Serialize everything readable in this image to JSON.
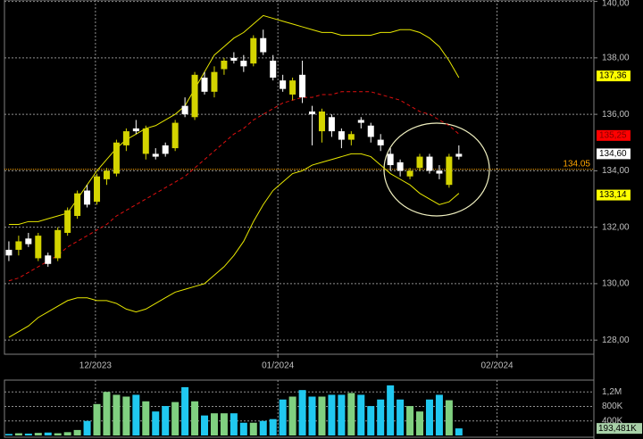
{
  "chart_data": {
    "type": "candlestick",
    "candles": [
      [
        131.2,
        131.5,
        130.8,
        131.0
      ],
      [
        131.2,
        131.7,
        131.0,
        131.5
      ],
      [
        131.6,
        131.8,
        131.3,
        131.4
      ],
      [
        130.9,
        131.8,
        130.8,
        131.7
      ],
      [
        131.0,
        131.1,
        130.6,
        130.7
      ],
      [
        130.9,
        132.0,
        130.8,
        131.9
      ],
      [
        131.8,
        132.7,
        131.7,
        132.6
      ],
      [
        132.4,
        133.3,
        132.3,
        133.2
      ],
      [
        133.3,
        133.5,
        132.7,
        132.8
      ],
      [
        132.9,
        133.9,
        132.8,
        133.8
      ],
      [
        133.7,
        134.1,
        133.5,
        134.0
      ],
      [
        133.9,
        135.1,
        133.8,
        135.0
      ],
      [
        134.9,
        135.5,
        134.7,
        135.4
      ],
      [
        135.5,
        135.8,
        135.3,
        135.4
      ],
      [
        134.6,
        135.6,
        134.4,
        135.5
      ],
      [
        134.6,
        134.8,
        134.4,
        134.5
      ],
      [
        134.9,
        135.0,
        134.5,
        134.6
      ],
      [
        134.8,
        135.8,
        134.7,
        135.7
      ],
      [
        136.3,
        136.6,
        135.9,
        136.0
      ],
      [
        135.9,
        137.5,
        135.8,
        137.4
      ],
      [
        137.3,
        137.5,
        136.7,
        136.8
      ],
      [
        136.8,
        137.7,
        136.6,
        137.5
      ],
      [
        137.6,
        138.0,
        137.4,
        137.9
      ],
      [
        138.0,
        138.2,
        137.8,
        137.9
      ],
      [
        137.9,
        138.1,
        137.5,
        137.7
      ],
      [
        137.8,
        138.8,
        137.7,
        138.7
      ],
      [
        138.7,
        139.0,
        138.1,
        138.2
      ],
      [
        137.9,
        138.1,
        137.2,
        137.3
      ],
      [
        137.2,
        137.4,
        136.8,
        136.9
      ],
      [
        136.7,
        137.3,
        136.5,
        137.2
      ],
      [
        137.4,
        137.9,
        136.4,
        136.6
      ],
      [
        136.1,
        136.3,
        134.9,
        136.0
      ],
      [
        135.4,
        136.2,
        135.0,
        136.1
      ],
      [
        135.9,
        136.0,
        135.2,
        135.4
      ],
      [
        135.4,
        135.5,
        134.8,
        135.1
      ],
      [
        135.1,
        135.4,
        134.9,
        135.3
      ],
      [
        135.8,
        135.9,
        135.5,
        135.7
      ],
      [
        135.6,
        135.7,
        135.0,
        135.2
      ],
      [
        135.1,
        135.3,
        134.7,
        134.9
      ],
      [
        134.6,
        134.8,
        134.0,
        134.2
      ],
      [
        134.3,
        134.4,
        133.8,
        134.0
      ],
      [
        133.8,
        134.1,
        133.7,
        134.0
      ],
      [
        134.1,
        134.6,
        134.0,
        134.5
      ],
      [
        134.5,
        134.6,
        133.9,
        134.0
      ],
      [
        134.0,
        134.2,
        133.7,
        133.9
      ],
      [
        133.5,
        134.6,
        133.4,
        134.5
      ],
      [
        134.6,
        134.9,
        134.4,
        134.5
      ]
    ],
    "up_color": "#d4d400",
    "down_color": "#ffffff",
    "bands": [
      {
        "color": "#e8e800",
        "dash": false,
        "values": [
          132.1,
          132.1,
          132.2,
          132.2,
          132.3,
          132.4,
          132.5,
          133.0,
          133.5,
          134.0,
          134.4,
          134.8,
          135.1,
          135.3,
          135.5,
          135.6,
          135.8,
          136.0,
          136.3,
          136.9,
          137.5,
          138.1,
          138.4,
          138.7,
          138.9,
          139.2,
          139.5,
          139.4,
          139.3,
          139.2,
          139.1,
          139.0,
          138.9,
          138.9,
          138.8,
          138.8,
          138.8,
          138.8,
          138.9,
          138.9,
          139.0,
          139.0,
          138.9,
          138.7,
          138.4,
          137.9,
          137.3
        ]
      },
      {
        "color": "#e01010",
        "dash": true,
        "values": [
          130.1,
          130.2,
          130.4,
          130.6,
          130.8,
          131.0,
          131.3,
          131.5,
          131.7,
          131.9,
          132.1,
          132.4,
          132.6,
          132.8,
          133.0,
          133.2,
          133.4,
          133.6,
          133.8,
          134.1,
          134.4,
          134.7,
          135.0,
          135.3,
          135.5,
          135.8,
          136.0,
          136.2,
          136.4,
          136.5,
          136.6,
          136.6,
          136.7,
          136.7,
          136.8,
          136.8,
          136.8,
          136.8,
          136.7,
          136.6,
          136.5,
          136.3,
          136.1,
          136.0,
          135.8,
          135.6,
          135.3
        ]
      },
      {
        "color": "#e8e800",
        "dash": false,
        "values": [
          128.1,
          128.3,
          128.5,
          128.8,
          129.0,
          129.2,
          129.4,
          129.5,
          129.5,
          129.4,
          129.4,
          129.3,
          129.1,
          129.0,
          129.1,
          129.3,
          129.5,
          129.7,
          129.8,
          129.9,
          130.0,
          130.3,
          130.6,
          131.0,
          131.5,
          132.2,
          132.8,
          133.3,
          133.6,
          133.9,
          134.0,
          134.2,
          134.3,
          134.4,
          134.5,
          134.6,
          134.6,
          134.5,
          134.2,
          133.9,
          133.7,
          133.5,
          133.2,
          133.0,
          132.8,
          132.9,
          133.2
        ]
      }
    ],
    "ylim": [
      127.5,
      140.05
    ],
    "yticks": [
      {
        "value": 128,
        "label": "128,00"
      },
      {
        "value": 130,
        "label": "130,00"
      },
      {
        "value": 132,
        "label": "132,00"
      },
      {
        "value": 134,
        "label": "134,00"
      },
      {
        "value": 136,
        "label": "136,00"
      },
      {
        "value": 138,
        "label": "138,00"
      },
      {
        "value": 140,
        "label": "140,00"
      }
    ],
    "xlim": [
      -0.45,
      59.8
    ],
    "xticks": [
      {
        "value": 8.85,
        "label": "12/2023"
      },
      {
        "value": 27.5,
        "label": "01/2024"
      },
      {
        "value": 49.9,
        "label": "02/2024"
      }
    ],
    "markers": [
      {
        "value": 137.36,
        "label": "137,36",
        "color": "#ffff00",
        "text_color": "#000000"
      },
      {
        "value": 135.25,
        "label": "135,25",
        "color": "#ff0000",
        "text_color": "#800000"
      },
      {
        "value": 134.6,
        "label": "134,60",
        "color": "#ffffff",
        "text_color": "#000000"
      },
      {
        "value": 133.14,
        "label": "133,14",
        "color": "#ffff00",
        "text_color": "#000000"
      }
    ],
    "hline": {
      "value": 134.05,
      "color": "#ffa500"
    },
    "volume": {
      "values": [
        40000,
        60000,
        50000,
        70000,
        80000,
        60000,
        90000,
        150000,
        400000,
        865000,
        1200000,
        1120000,
        1070000,
        1120000,
        940000,
        660000,
        810000,
        920000,
        1330000,
        940000,
        550000,
        610000,
        610000,
        610000,
        350000,
        350000,
        400000,
        450000,
        990000,
        1070000,
        1250000,
        1070000,
        1070000,
        1120000,
        1120000,
        1170000,
        1120000,
        810000,
        990000,
        1380000,
        990000,
        810000,
        660000,
        990000,
        1120000,
        970000,
        193481
      ],
      "last_label": "193,481K",
      "up_color": "#80d080",
      "down_color": "#20c8f0",
      "ylim": [
        0,
        1500000
      ],
      "yticks": [
        {
          "value": 400000,
          "label": "400K"
        },
        {
          "value": 800000,
          "label": "800K"
        },
        {
          "value": 1200000,
          "label": "1,2M"
        }
      ]
    }
  }
}
